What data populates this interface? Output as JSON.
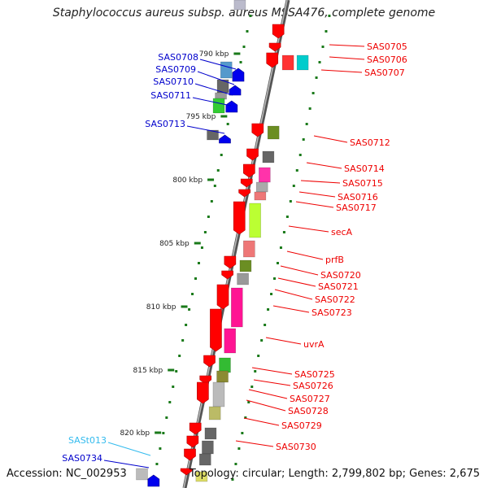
{
  "title": "Staphylococcus aureus subsp. aureus MSSA476, complete genome",
  "accession": "Accession: NC_002953",
  "stats": "Topology: circular; Length: 2,799,802 bp; Genes: 2,675",
  "colors": {
    "forward_label": "#ee0000",
    "reverse_label": "#0000cc",
    "rna_label": "#33bbee",
    "backbone": "#777777",
    "ticks": "#1a7a1a"
  },
  "scale_ticks": [
    "790 kbp",
    "795 kbp",
    "800 kbp",
    "805 kbp",
    "810 kbp",
    "815 kbp",
    "820 kbp"
  ],
  "right_genes": [
    "SAS0705",
    "SAS0706",
    "SAS0707",
    "SAS0712",
    "SAS0714",
    "SAS0715",
    "SAS0716",
    "SAS0717",
    "secA",
    "prfB",
    "SAS0720",
    "SAS0721",
    "SAS0722",
    "SAS0723",
    "uvrA",
    "SAS0725",
    "SAS0726",
    "SAS0727",
    "SAS0728",
    "SAS0729",
    "SAS0730"
  ],
  "left_genes": [
    "SAS0708",
    "SAS0709",
    "SAS0710",
    "SAS0711",
    "SAS0713",
    "SASt013",
    "SAS0734"
  ]
}
